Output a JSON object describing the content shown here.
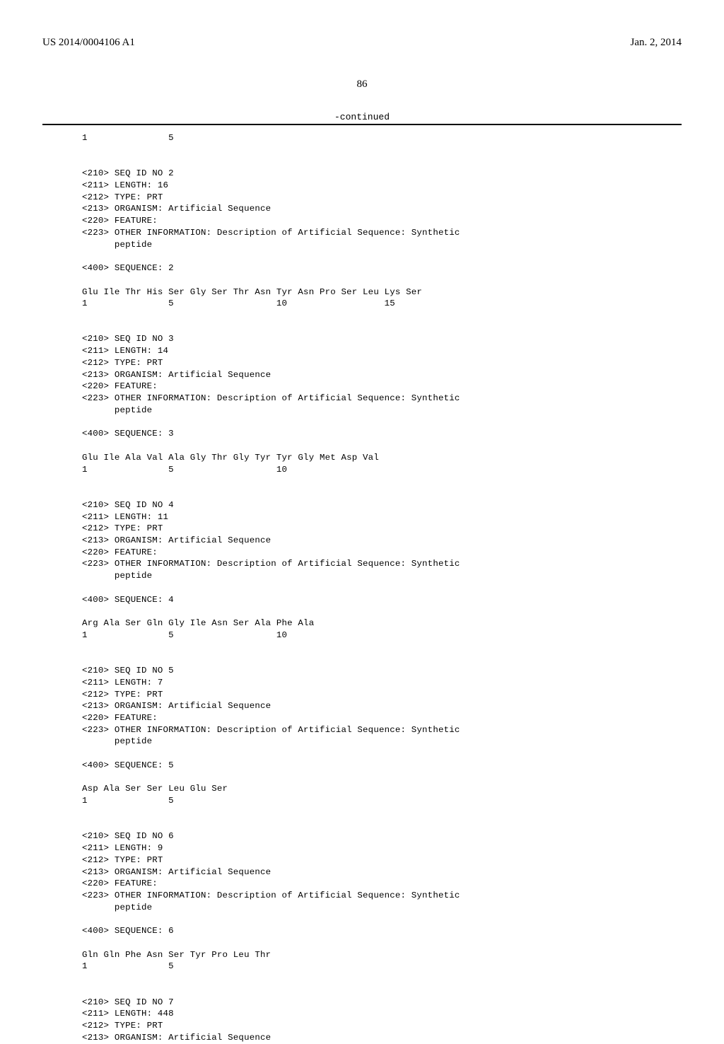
{
  "header": {
    "pub_number": "US 2014/0004106 A1",
    "pub_date": "Jan. 2, 2014"
  },
  "page_number": "86",
  "continued_label": "-continued",
  "listing_lines": [
    "1               5",
    "",
    "",
    "<210> SEQ ID NO 2",
    "<211> LENGTH: 16",
    "<212> TYPE: PRT",
    "<213> ORGANISM: Artificial Sequence",
    "<220> FEATURE:",
    "<223> OTHER INFORMATION: Description of Artificial Sequence: Synthetic",
    "      peptide",
    "",
    "<400> SEQUENCE: 2",
    "",
    "Glu Ile Thr His Ser Gly Ser Thr Asn Tyr Asn Pro Ser Leu Lys Ser",
    "1               5                   10                  15",
    "",
    "",
    "<210> SEQ ID NO 3",
    "<211> LENGTH: 14",
    "<212> TYPE: PRT",
    "<213> ORGANISM: Artificial Sequence",
    "<220> FEATURE:",
    "<223> OTHER INFORMATION: Description of Artificial Sequence: Synthetic",
    "      peptide",
    "",
    "<400> SEQUENCE: 3",
    "",
    "Glu Ile Ala Val Ala Gly Thr Gly Tyr Tyr Gly Met Asp Val",
    "1               5                   10",
    "",
    "",
    "<210> SEQ ID NO 4",
    "<211> LENGTH: 11",
    "<212> TYPE: PRT",
    "<213> ORGANISM: Artificial Sequence",
    "<220> FEATURE:",
    "<223> OTHER INFORMATION: Description of Artificial Sequence: Synthetic",
    "      peptide",
    "",
    "<400> SEQUENCE: 4",
    "",
    "Arg Ala Ser Gln Gly Ile Asn Ser Ala Phe Ala",
    "1               5                   10",
    "",
    "",
    "<210> SEQ ID NO 5",
    "<211> LENGTH: 7",
    "<212> TYPE: PRT",
    "<213> ORGANISM: Artificial Sequence",
    "<220> FEATURE:",
    "<223> OTHER INFORMATION: Description of Artificial Sequence: Synthetic",
    "      peptide",
    "",
    "<400> SEQUENCE: 5",
    "",
    "Asp Ala Ser Ser Leu Glu Ser",
    "1               5",
    "",
    "",
    "<210> SEQ ID NO 6",
    "<211> LENGTH: 9",
    "<212> TYPE: PRT",
    "<213> ORGANISM: Artificial Sequence",
    "<220> FEATURE:",
    "<223> OTHER INFORMATION: Description of Artificial Sequence: Synthetic",
    "      peptide",
    "",
    "<400> SEQUENCE: 6",
    "",
    "Gln Gln Phe Asn Ser Tyr Pro Leu Thr",
    "1               5",
    "",
    "",
    "<210> SEQ ID NO 7",
    "<211> LENGTH: 448",
    "<212> TYPE: PRT",
    "<213> ORGANISM: Artificial Sequence"
  ]
}
